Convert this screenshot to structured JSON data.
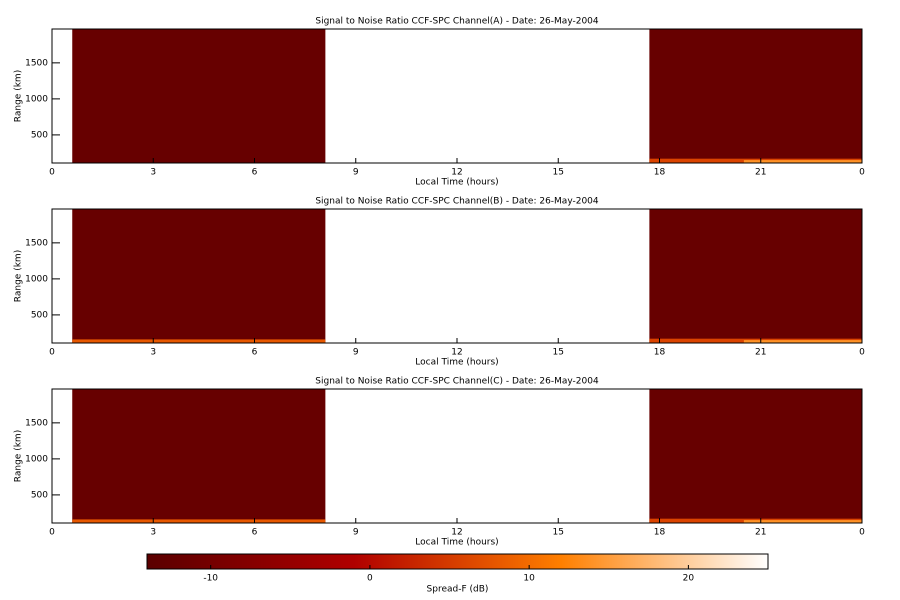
{
  "chart_data": [
    {
      "type": "heatmap",
      "title": "Signal to Noise Ratio CCF-SPC Channel(A) - Date: 26-May-2004",
      "x_label": "Local Time (hours)",
      "y_label": "Range (km)",
      "xlim": [
        0,
        24
      ],
      "xticks": [
        0,
        3,
        6,
        9,
        12,
        15,
        18,
        21,
        {
          "value": 24,
          "label": "0"
        }
      ],
      "ylim": [
        110,
        1970
      ],
      "yticks": [
        500,
        1000,
        1500
      ],
      "blocks": [
        {
          "x": [
            0.6,
            8.1
          ],
          "y": [
            110,
            1970
          ],
          "value": -12
        },
        {
          "x": [
            17.7,
            24
          ],
          "y": [
            110,
            1970
          ],
          "value": -12
        },
        {
          "x": [
            17.7,
            24
          ],
          "y": [
            110,
            170
          ],
          "value": 6
        },
        {
          "x": [
            20.5,
            24
          ],
          "y": [
            110,
            150
          ],
          "value": 14
        }
      ]
    },
    {
      "type": "heatmap",
      "title": "Signal to Noise Ratio CCF-SPC Channel(B) - Date: 26-May-2004",
      "x_label": "Local Time (hours)",
      "y_label": "Range (km)",
      "xlim": [
        0,
        24
      ],
      "xticks": [
        0,
        3,
        6,
        9,
        12,
        15,
        18,
        21,
        {
          "value": 24,
          "label": "0"
        }
      ],
      "ylim": [
        110,
        1970
      ],
      "yticks": [
        500,
        1000,
        1500
      ],
      "blocks": [
        {
          "x": [
            0.6,
            8.1
          ],
          "y": [
            110,
            1970
          ],
          "value": -12
        },
        {
          "x": [
            17.7,
            24
          ],
          "y": [
            110,
            1970
          ],
          "value": -12
        },
        {
          "x": [
            0.6,
            8.1
          ],
          "y": [
            110,
            160
          ],
          "value": 8
        },
        {
          "x": [
            17.7,
            24
          ],
          "y": [
            110,
            170
          ],
          "value": 6
        },
        {
          "x": [
            20.5,
            24
          ],
          "y": [
            110,
            150
          ],
          "value": 14
        }
      ]
    },
    {
      "type": "heatmap",
      "title": "Signal to Noise Ratio CCF-SPC Channel(C) - Date: 26-May-2004",
      "x_label": "Local Time (hours)",
      "y_label": "Range (km)",
      "xlim": [
        0,
        24
      ],
      "xticks": [
        0,
        3,
        6,
        9,
        12,
        15,
        18,
        21,
        {
          "value": 24,
          "label": "0"
        }
      ],
      "ylim": [
        110,
        1970
      ],
      "yticks": [
        500,
        1000,
        1500
      ],
      "blocks": [
        {
          "x": [
            0.6,
            8.1
          ],
          "y": [
            110,
            1970
          ],
          "value": -12
        },
        {
          "x": [
            17.7,
            24
          ],
          "y": [
            110,
            1970
          ],
          "value": -12
        },
        {
          "x": [
            0.6,
            8.1
          ],
          "y": [
            110,
            160
          ],
          "value": 8
        },
        {
          "x": [
            17.7,
            24
          ],
          "y": [
            110,
            170
          ],
          "value": 6
        },
        {
          "x": [
            20.5,
            24
          ],
          "y": [
            110,
            150
          ],
          "value": 14
        }
      ]
    },
    {
      "type": "colorbar",
      "label": "Spread-F (dB)",
      "lim": [
        -14,
        25
      ],
      "ticks": [
        -10,
        0,
        10,
        20
      ],
      "colormap": [
        "#5a0000",
        "#b00000",
        "#ff7f00",
        "#ffffff"
      ]
    }
  ]
}
